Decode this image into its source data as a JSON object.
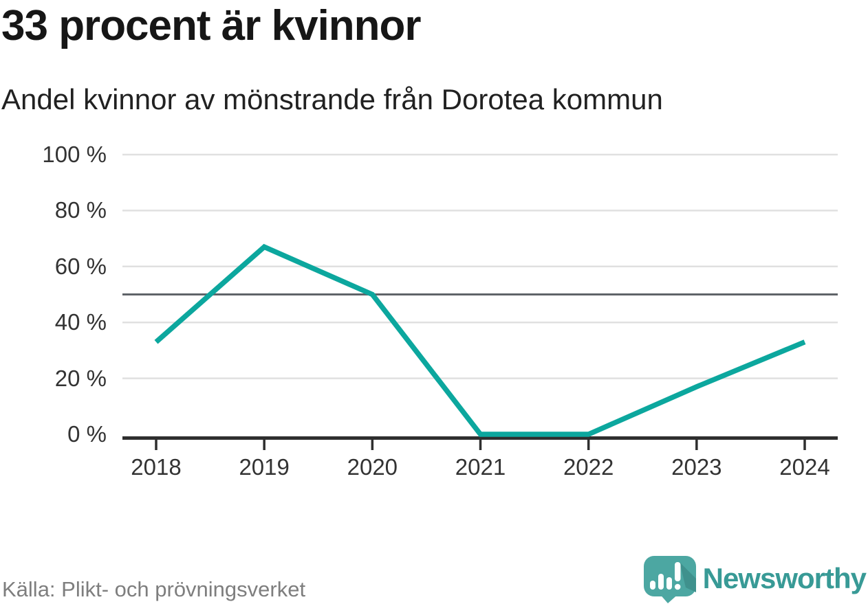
{
  "header": {
    "title": "33 procent är kvinnor",
    "subtitle": "Andel kvinnor av mönstrande från Dorotea kommun"
  },
  "chart_data": {
    "type": "line",
    "title": "33 procent är kvinnor",
    "subtitle": "Andel kvinnor av mönstrande från Dorotea kommun",
    "x": [
      2018,
      2019,
      2020,
      2021,
      2022,
      2023,
      2024
    ],
    "series": [
      {
        "name": "Andel kvinnor av mönstrande",
        "values": [
          33,
          67,
          50,
          0,
          0,
          17,
          33
        ]
      }
    ],
    "xlabel": "",
    "ylabel": "",
    "ylim": [
      0,
      100
    ],
    "yticks": [
      0,
      20,
      40,
      60,
      80,
      100
    ],
    "ytick_suffix": " %",
    "reference_line": {
      "value": 50
    },
    "grid": "horizontal",
    "legend": "none"
  },
  "footer": {
    "source": "Källa: Plikt- och prövningsverket",
    "brand": "Newsworthy"
  },
  "icons": {
    "logo": "newsworthy-speech-bubble-bar-chart"
  },
  "colors": {
    "line": "#0ca79e",
    "grid": "#e0e0e0",
    "reference": "#5f6368",
    "axis": "#2f2f2f",
    "tick_label": "#333333",
    "title": "#161616",
    "source": "#7e7e7e",
    "brand_text": "#389a96",
    "logo_bubble": "#4ca7a2",
    "logo_fold": "#3f918d",
    "logo_bars": "#ffffff"
  }
}
